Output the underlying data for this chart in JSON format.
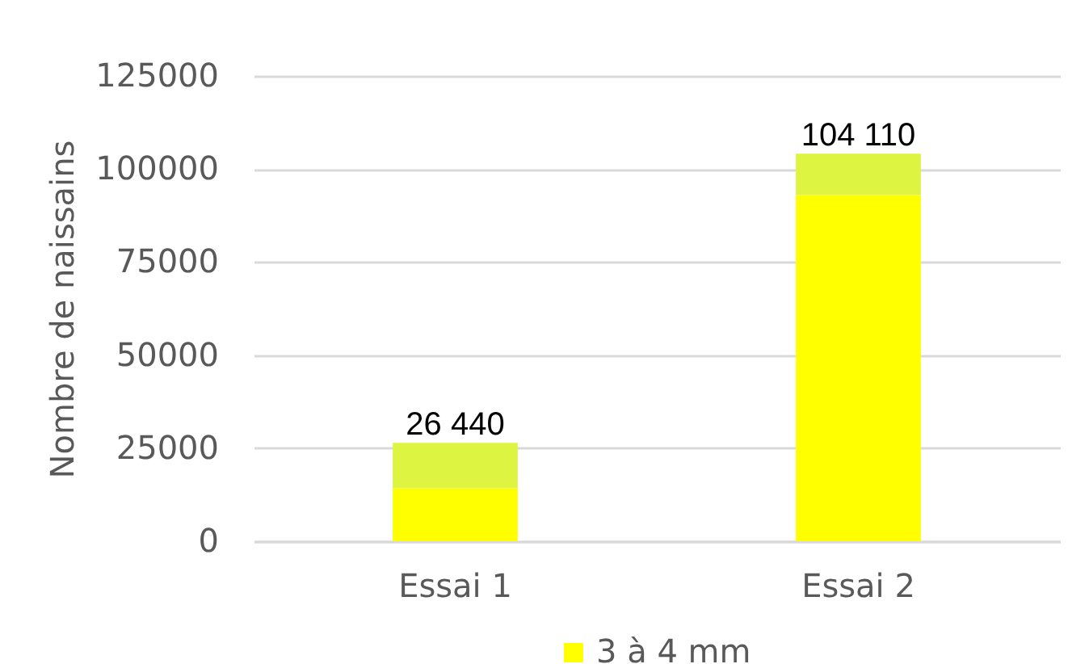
{
  "chart_data": {
    "type": "bar",
    "ylabel": "Nombre de naissains",
    "categories": [
      "Essai 1",
      "Essai 2"
    ],
    "stacked": true,
    "series": [
      {
        "name": "3 à 4 mm",
        "color": "#ffff00",
        "values": [
          14200,
          93000
        ]
      },
      {
        "color": "#ddf540",
        "values": [
          12240,
          11110
        ]
      }
    ],
    "totals": [
      "26 440",
      "104 110"
    ],
    "ylim": [
      0,
      125000
    ],
    "yticks": [
      0,
      25000,
      50000,
      75000,
      100000,
      125000
    ],
    "grid": "y",
    "legend": "bottom"
  }
}
